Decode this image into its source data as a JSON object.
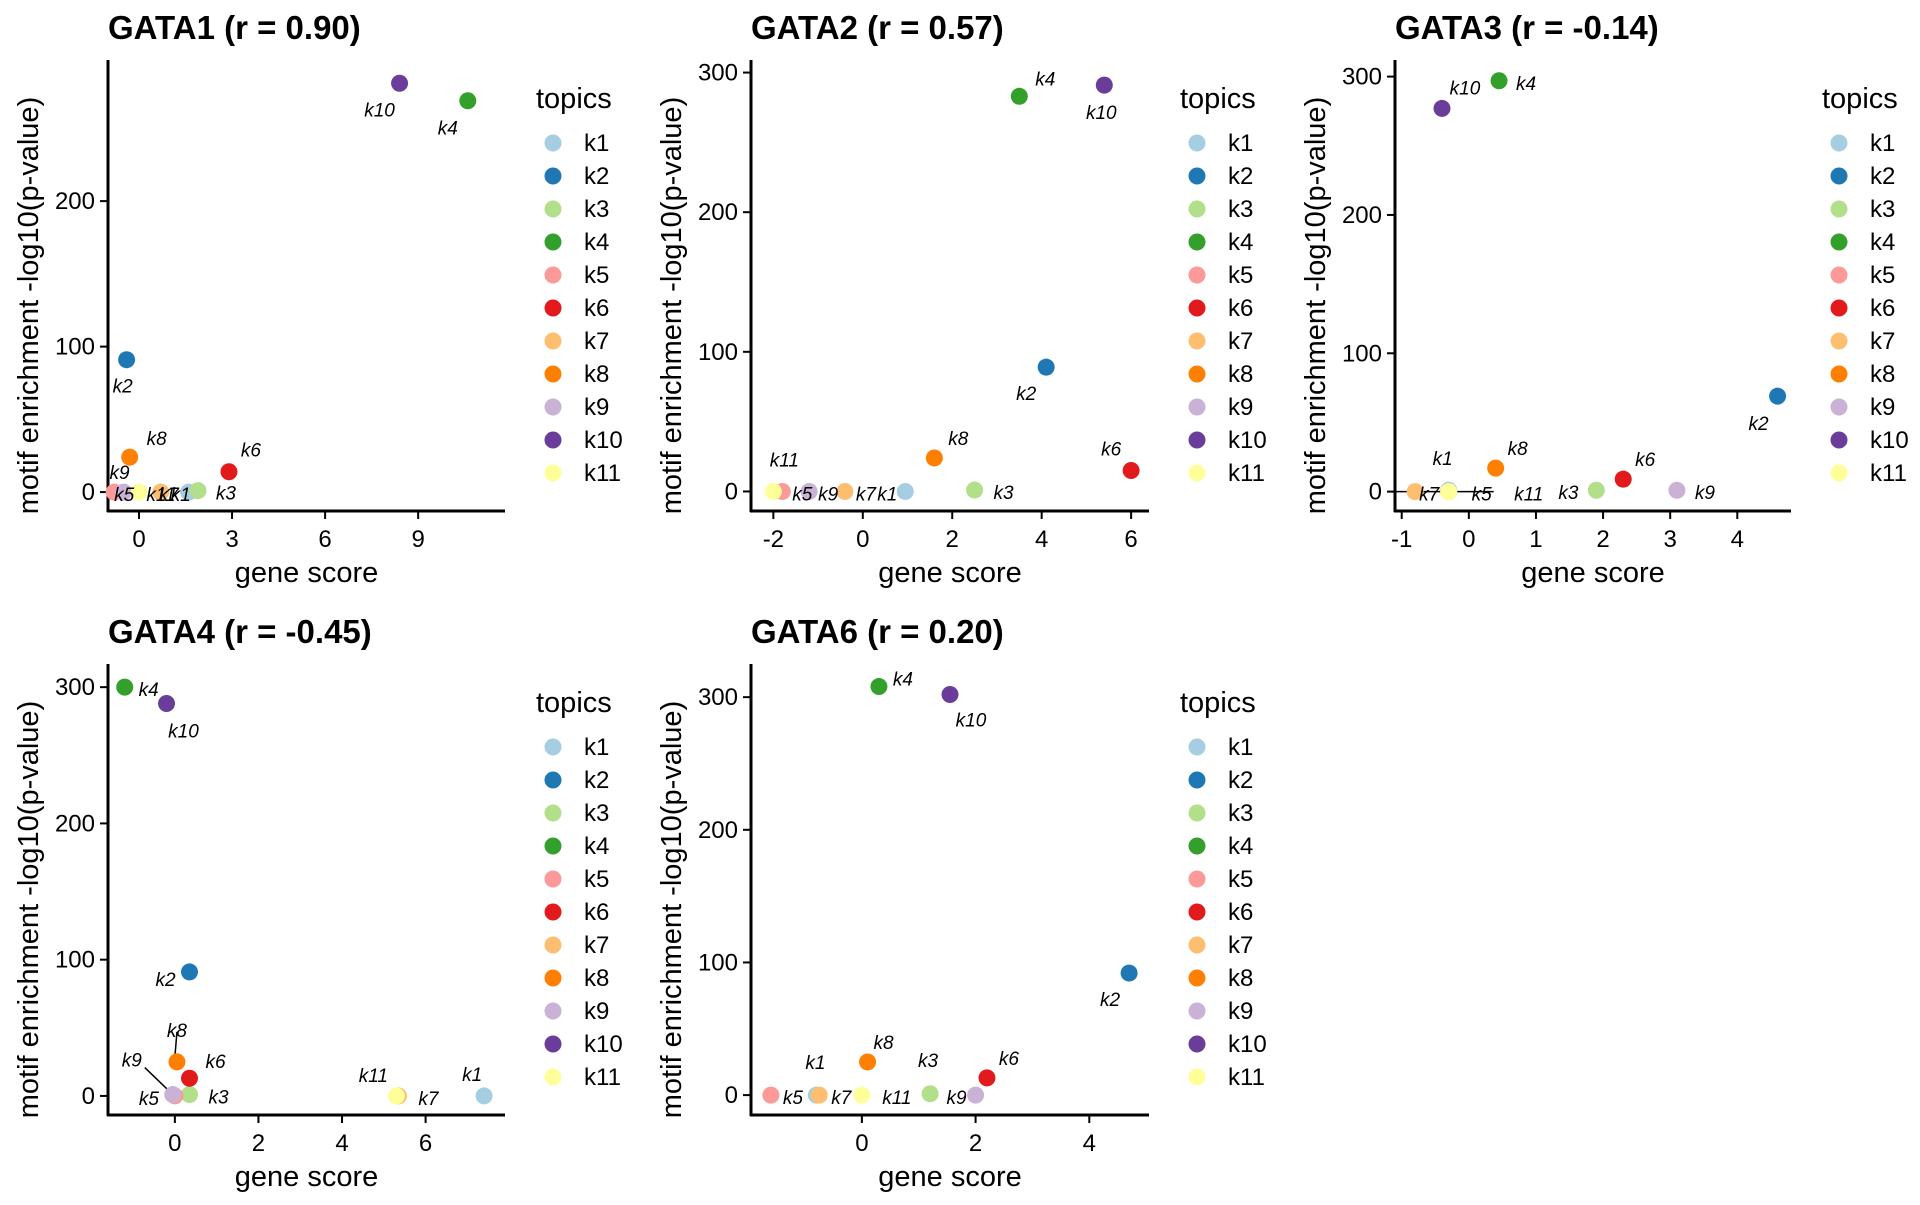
{
  "colors": {
    "k1": "#a6cee3",
    "k2": "#1f78b4",
    "k3": "#b2df8a",
    "k4": "#33a02c",
    "k5": "#fb9a99",
    "k6": "#e31a1c",
    "k7": "#fdbf6f",
    "k8": "#ff7f00",
    "k9": "#cab2d6",
    "k10": "#6a3d9a",
    "k11": "#ffff99"
  },
  "legend": {
    "title": "topics",
    "items": [
      "k1",
      "k2",
      "k3",
      "k4",
      "k5",
      "k6",
      "k7",
      "k8",
      "k9",
      "k10",
      "k11"
    ]
  },
  "chart_data": [
    {
      "type": "scatter",
      "title": "GATA1 (r = 0.90)",
      "xlabel": "gene score",
      "ylabel": "motif enrichment -log10(p-value)",
      "xlim": [
        -1.0,
        11.8
      ],
      "ylim": [
        -13,
        297
      ],
      "xticks": [
        0,
        3,
        6,
        9
      ],
      "yticks": [
        0,
        100,
        200
      ],
      "points": [
        {
          "topic": "k1",
          "x": 1.6,
          "y": 0
        },
        {
          "topic": "k2",
          "x": -0.4,
          "y": 91
        },
        {
          "topic": "k3",
          "x": 1.9,
          "y": 1
        },
        {
          "topic": "k4",
          "x": 10.6,
          "y": 269
        },
        {
          "topic": "k5",
          "x": -0.8,
          "y": 0
        },
        {
          "topic": "k6",
          "x": 2.9,
          "y": 14
        },
        {
          "topic": "k7",
          "x": 0.7,
          "y": 0
        },
        {
          "topic": "k8",
          "x": -0.3,
          "y": 24
        },
        {
          "topic": "k9",
          "x": -0.5,
          "y": 0
        },
        {
          "topic": "k10",
          "x": 8.4,
          "y": 281
        },
        {
          "topic": "k11",
          "x": 0.0,
          "y": 0
        }
      ]
    },
    {
      "type": "scatter",
      "title": "GATA2 (r = 0.57)",
      "xlabel": "gene score",
      "ylabel": "motif enrichment -log10(p-value)",
      "xlim": [
        -2.5,
        6.4
      ],
      "ylim": [
        -14,
        309
      ],
      "xticks": [
        -2,
        0,
        2,
        4,
        6
      ],
      "yticks": [
        0,
        100,
        200,
        300
      ],
      "points": [
        {
          "topic": "k1",
          "x": 0.95,
          "y": 0
        },
        {
          "topic": "k2",
          "x": 4.1,
          "y": 89
        },
        {
          "topic": "k3",
          "x": 2.5,
          "y": 1
        },
        {
          "topic": "k4",
          "x": 3.5,
          "y": 283
        },
        {
          "topic": "k5",
          "x": -1.8,
          "y": 0
        },
        {
          "topic": "k6",
          "x": 6.0,
          "y": 15
        },
        {
          "topic": "k7",
          "x": -0.4,
          "y": 0
        },
        {
          "topic": "k8",
          "x": 1.6,
          "y": 24
        },
        {
          "topic": "k9",
          "x": -1.2,
          "y": 0
        },
        {
          "topic": "k10",
          "x": 5.4,
          "y": 291
        },
        {
          "topic": "k11",
          "x": -2.0,
          "y": 0
        }
      ]
    },
    {
      "type": "scatter",
      "title": "GATA3 (r = -0.14)",
      "xlabel": "gene score",
      "ylabel": "motif enrichment -log10(p-value)",
      "xlim": [
        -1.1,
        4.8
      ],
      "ylim": [
        -14,
        312
      ],
      "xticks": [
        -1,
        0,
        1,
        2,
        3,
        4
      ],
      "yticks": [
        0,
        100,
        200,
        300
      ],
      "points": [
        {
          "topic": "k1",
          "x": -0.3,
          "y": 1
        },
        {
          "topic": "k2",
          "x": 4.6,
          "y": 69
        },
        {
          "topic": "k3",
          "x": 1.9,
          "y": 1
        },
        {
          "topic": "k4",
          "x": 0.45,
          "y": 297
        },
        {
          "topic": "k5",
          "x": -0.3,
          "y": 0
        },
        {
          "topic": "k6",
          "x": 2.3,
          "y": 9
        },
        {
          "topic": "k7",
          "x": -0.8,
          "y": 0
        },
        {
          "topic": "k8",
          "x": 0.4,
          "y": 17
        },
        {
          "topic": "k9",
          "x": 3.1,
          "y": 1
        },
        {
          "topic": "k10",
          "x": -0.4,
          "y": 277
        },
        {
          "topic": "k11",
          "x": -0.3,
          "y": 0
        }
      ]
    },
    {
      "type": "scatter",
      "title": "GATA4 (r = -0.45)",
      "xlabel": "gene score",
      "ylabel": "motif enrichment -log10(p-value)",
      "xlim": [
        -1.6,
        7.9
      ],
      "ylim": [
        -14,
        317
      ],
      "xticks": [
        0,
        2,
        4,
        6
      ],
      "yticks": [
        0,
        100,
        200,
        300
      ],
      "points": [
        {
          "topic": "k1",
          "x": 7.4,
          "y": 0
        },
        {
          "topic": "k2",
          "x": 0.35,
          "y": 91
        },
        {
          "topic": "k3",
          "x": 0.35,
          "y": 1
        },
        {
          "topic": "k4",
          "x": -1.2,
          "y": 300
        },
        {
          "topic": "k5",
          "x": 0.0,
          "y": 0
        },
        {
          "topic": "k6",
          "x": 0.35,
          "y": 13
        },
        {
          "topic": "k7",
          "x": 5.35,
          "y": 0
        },
        {
          "topic": "k8",
          "x": 0.05,
          "y": 25
        },
        {
          "topic": "k9",
          "x": -0.05,
          "y": 1
        },
        {
          "topic": "k10",
          "x": -0.2,
          "y": 288
        },
        {
          "topic": "k11",
          "x": 5.3,
          "y": 0
        }
      ]
    },
    {
      "type": "scatter",
      "title": "GATA6 (r = 0.20)",
      "xlabel": "gene score",
      "ylabel": "motif enrichment -log10(p-value)",
      "xlim": [
        -1.95,
        5.05
      ],
      "ylim": [
        -15,
        325
      ],
      "xticks": [
        0,
        2,
        4
      ],
      "yticks": [
        0,
        100,
        200,
        300
      ],
      "points": [
        {
          "topic": "k1",
          "x": -0.8,
          "y": 0
        },
        {
          "topic": "k2",
          "x": 4.7,
          "y": 92
        },
        {
          "topic": "k3",
          "x": 1.2,
          "y": 1
        },
        {
          "topic": "k4",
          "x": 0.3,
          "y": 308
        },
        {
          "topic": "k5",
          "x": -1.6,
          "y": 0
        },
        {
          "topic": "k6",
          "x": 2.2,
          "y": 13
        },
        {
          "topic": "k7",
          "x": -0.75,
          "y": 0
        },
        {
          "topic": "k8",
          "x": 0.1,
          "y": 25
        },
        {
          "topic": "k9",
          "x": 2.0,
          "y": 0
        },
        {
          "topic": "k10",
          "x": 1.55,
          "y": 302
        },
        {
          "topic": "k11",
          "x": 0.0,
          "y": 0
        }
      ]
    }
  ]
}
